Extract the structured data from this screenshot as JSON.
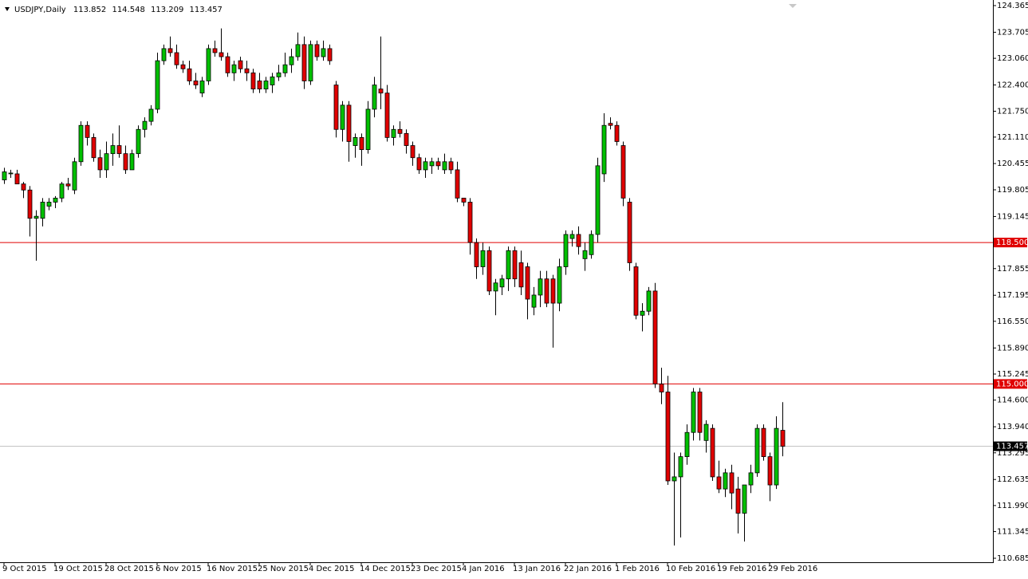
{
  "chart_data": {
    "type": "candlestick",
    "title": "USDJPY,Daily",
    "categories": [
      "9 Oct 2015",
      null,
      null,
      null,
      null,
      null,
      null,
      null,
      "19 Oct 2015",
      null,
      null,
      null,
      null,
      null,
      null,
      null,
      "28 Oct 2015",
      null,
      null,
      null,
      null,
      null,
      null,
      null,
      "6 Nov 2015",
      null,
      null,
      null,
      null,
      null,
      null,
      null,
      "16 Nov 2015",
      null,
      null,
      null,
      null,
      null,
      null,
      null,
      "25 Nov 2015",
      null,
      null,
      null,
      null,
      null,
      null,
      null,
      "4 Dec 2015",
      null,
      null,
      null,
      null,
      null,
      null,
      null,
      "14 Dec 2015",
      null,
      null,
      null,
      null,
      null,
      null,
      null,
      "23 Dec 2015",
      null,
      null,
      null,
      null,
      null,
      null,
      null,
      "4 Jan 2016",
      null,
      null,
      null,
      null,
      null,
      null,
      null,
      "13 Jan 2016",
      null,
      null,
      null,
      null,
      null,
      null,
      null,
      "22 Jan 2016",
      null,
      null,
      null,
      null,
      null,
      null,
      null,
      "1 Feb 2016",
      null,
      null,
      null,
      null,
      null,
      null,
      null,
      "10 Feb 2016",
      null,
      null,
      null,
      null,
      null,
      null,
      null,
      "19 Feb 2016",
      null,
      null,
      null,
      null,
      null,
      null,
      null,
      "29 Feb 2016",
      null,
      null
    ],
    "series": [
      {
        "open": [
          120.05,
          120.2,
          120.2,
          119.95,
          119.8,
          119.1,
          119.1,
          119.4,
          119.5,
          119.6,
          119.95,
          119.8,
          120.5,
          121.4,
          121.1,
          120.6,
          120.3,
          120.7,
          120.9,
          120.7,
          120.3,
          120.7,
          121.3,
          121.5,
          121.8,
          123.0,
          123.3,
          123.2,
          122.9,
          122.8,
          122.5,
          122.2,
          122.5,
          123.3,
          123.2,
          123.1,
          122.7,
          123.0,
          122.8,
          122.7,
          122.5,
          122.3,
          122.4,
          122.6,
          122.7,
          122.9,
          123.1,
          123.4,
          122.5,
          123.4,
          123.1,
          123.3,
          122.4,
          121.3,
          121.9,
          120.9,
          121.1,
          120.8,
          121.8,
          122.3,
          122.2,
          121.1,
          121.3,
          121.2,
          120.9,
          120.6,
          120.3,
          120.4,
          120.5,
          120.3,
          120.5,
          120.3,
          119.6,
          119.5,
          118.5,
          117.9,
          118.3,
          117.3,
          117.4,
          117.6,
          118.3,
          118.0,
          117.9,
          116.9,
          117.2,
          117.6,
          117.6,
          117.0,
          117.9,
          118.6,
          118.7,
          118.1,
          118.2,
          118.7,
          120.2,
          121.45,
          121.4,
          120.9,
          119.5,
          117.9,
          116.7,
          116.8,
          117.3,
          115.0,
          114.8,
          112.6,
          112.7,
          113.2,
          113.8,
          114.8,
          113.6,
          113.9,
          112.7,
          112.4,
          112.8,
          112.4,
          111.8,
          112.5,
          112.8,
          113.9,
          113.2,
          112.5,
          113.852
        ],
        "high": [
          120.35,
          120.3,
          120.3,
          120.0,
          119.9,
          119.3,
          119.6,
          119.6,
          119.65,
          120.0,
          120.1,
          120.6,
          121.5,
          121.5,
          121.2,
          120.8,
          121.0,
          121.2,
          121.4,
          120.9,
          120.8,
          121.4,
          121.6,
          121.9,
          123.2,
          123.4,
          123.6,
          123.4,
          123.0,
          123.0,
          122.7,
          122.6,
          123.4,
          123.5,
          123.8,
          123.2,
          123.0,
          123.1,
          123.0,
          122.8,
          122.7,
          122.6,
          122.7,
          122.9,
          123.2,
          123.3,
          123.7,
          123.6,
          123.5,
          123.5,
          123.5,
          123.4,
          122.5,
          122.0,
          122.0,
          121.2,
          121.2,
          122.0,
          122.6,
          123.6,
          122.4,
          121.4,
          121.5,
          121.3,
          121.0,
          120.7,
          120.6,
          120.6,
          120.6,
          120.7,
          120.6,
          120.5,
          119.6,
          119.6,
          118.6,
          118.5,
          118.4,
          117.6,
          117.7,
          118.4,
          118.4,
          118.3,
          118.0,
          117.4,
          117.8,
          117.8,
          117.7,
          118.1,
          118.8,
          118.8,
          118.9,
          118.5,
          118.8,
          120.6,
          121.7,
          121.6,
          121.5,
          121.0,
          119.6,
          118.0,
          117.0,
          117.4,
          117.5,
          115.4,
          115.2,
          113.3,
          113.3,
          114.0,
          114.9,
          114.9,
          114.1,
          114.0,
          113.1,
          112.9,
          113.0,
          112.7,
          112.5,
          113.0,
          114.0,
          114.0,
          113.3,
          114.2,
          114.548
        ],
        "low": [
          119.95,
          120.1,
          119.95,
          119.6,
          118.65,
          118.05,
          118.9,
          119.3,
          119.35,
          119.5,
          119.8,
          119.7,
          120.4,
          120.9,
          120.5,
          120.1,
          120.1,
          120.4,
          120.6,
          120.2,
          120.3,
          120.6,
          121.1,
          121.4,
          121.7,
          122.9,
          123.1,
          122.8,
          122.7,
          122.4,
          122.3,
          122.1,
          122.4,
          123.1,
          123.0,
          122.6,
          122.5,
          122.7,
          122.5,
          122.2,
          122.2,
          122.2,
          122.2,
          122.5,
          122.6,
          122.7,
          123.0,
          122.3,
          122.4,
          123.0,
          123.0,
          122.9,
          121.1,
          121.0,
          120.5,
          120.6,
          120.4,
          120.7,
          121.6,
          121.8,
          121.0,
          120.9,
          121.1,
          120.7,
          120.4,
          120.2,
          120.1,
          120.2,
          120.3,
          120.2,
          120.2,
          119.5,
          119.4,
          118.2,
          117.6,
          117.7,
          117.2,
          116.7,
          117.2,
          117.3,
          117.4,
          117.2,
          116.6,
          116.7,
          116.9,
          116.9,
          115.9,
          116.8,
          117.7,
          118.4,
          118.2,
          117.8,
          118.1,
          118.5,
          120.0,
          121.3,
          120.9,
          119.4,
          117.8,
          116.6,
          116.3,
          116.7,
          114.9,
          114.5,
          112.5,
          111.0,
          111.2,
          113.0,
          113.6,
          113.6,
          113.3,
          112.6,
          112.3,
          112.2,
          111.9,
          111.3,
          111.1,
          112.3,
          112.7,
          113.1,
          112.1,
          112.4,
          113.209
        ],
        "close": [
          120.25,
          120.22,
          119.95,
          119.8,
          119.1,
          119.15,
          119.5,
          119.5,
          119.6,
          119.95,
          119.9,
          120.5,
          121.4,
          121.1,
          120.6,
          120.3,
          120.7,
          120.9,
          120.7,
          120.3,
          120.7,
          121.3,
          121.5,
          121.8,
          123.0,
          123.3,
          123.2,
          122.9,
          122.8,
          122.5,
          122.4,
          122.5,
          123.3,
          123.2,
          123.1,
          122.7,
          122.9,
          122.8,
          122.7,
          122.3,
          122.3,
          122.5,
          122.6,
          122.7,
          122.9,
          123.1,
          123.4,
          122.5,
          123.4,
          123.1,
          123.3,
          123.0,
          121.3,
          121.9,
          121.0,
          121.1,
          120.8,
          121.8,
          122.4,
          122.2,
          121.1,
          121.3,
          121.2,
          120.9,
          120.6,
          120.3,
          120.5,
          120.5,
          120.4,
          120.5,
          120.3,
          119.6,
          119.5,
          118.5,
          117.9,
          118.3,
          117.3,
          117.5,
          117.6,
          118.3,
          117.6,
          117.4,
          117.1,
          117.2,
          117.6,
          117.0,
          117.0,
          117.9,
          118.7,
          118.7,
          118.4,
          118.3,
          118.7,
          120.4,
          121.4,
          121.4,
          121.0,
          119.6,
          118.0,
          116.7,
          116.8,
          117.3,
          115.0,
          114.8,
          112.6,
          112.7,
          113.2,
          113.8,
          114.8,
          113.8,
          114.0,
          112.7,
          112.4,
          112.8,
          112.3,
          111.8,
          112.5,
          112.8,
          113.9,
          113.2,
          112.5,
          113.9,
          113.457
        ]
      }
    ],
    "up_color": "#00c000",
    "down_color": "#e00000",
    "wick_color": "#000000",
    "ylim": [
      110.685,
      124.365
    ],
    "yticks": [
      124.365,
      123.705,
      {
        "value": 123.06,
        "label": "123.060"
      },
      {
        "value": 122.4,
        "label": "122.400"
      },
      {
        "value": 121.75,
        "label": "121.750"
      },
      {
        "value": 121.11,
        "label": "121.110"
      },
      120.455,
      119.805,
      119.145,
      117.855,
      117.195,
      {
        "value": 116.55,
        "label": "116.550"
      },
      {
        "value": 115.89,
        "label": "115.890"
      },
      115.245,
      {
        "value": 114.6,
        "label": "114.600"
      },
      {
        "value": 113.94,
        "label": "113.940"
      },
      113.295,
      112.635,
      {
        "value": 111.99,
        "label": "111.990"
      },
      111.345,
      110.685
    ],
    "hlines": [
      {
        "value": 118.5,
        "label": "118.500"
      },
      {
        "value": 115,
        "label": "115.000"
      }
    ],
    "hline_color": "#e00000",
    "price_line_color": "#c0c0c0"
  }
}
